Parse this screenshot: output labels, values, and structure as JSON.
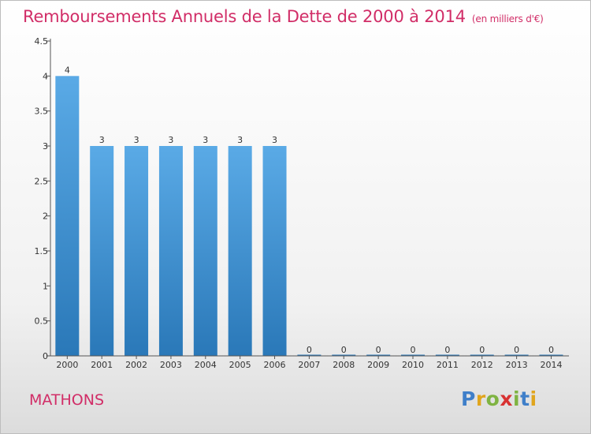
{
  "header": {
    "title": "Remboursements Annuels de la Dette de 2000 à 2014",
    "subtitle": "(en milliers d'€)"
  },
  "footer": {
    "place": "MATHONS",
    "logo_letters": [
      {
        "ch": "P",
        "color": "#3f7fc9"
      },
      {
        "ch": "r",
        "color": "#e0a51d"
      },
      {
        "ch": "o",
        "color": "#7fb342"
      },
      {
        "ch": "x",
        "color": "#d83232"
      },
      {
        "ch": "i",
        "color": "#7fb342"
      },
      {
        "ch": "t",
        "color": "#3f7fc9"
      },
      {
        "ch": "i",
        "color": "#e0a51d"
      }
    ]
  },
  "chart_data": {
    "type": "bar",
    "categories": [
      "2000",
      "2001",
      "2002",
      "2003",
      "2004",
      "2005",
      "2006",
      "2007",
      "2008",
      "2009",
      "2010",
      "2011",
      "2012",
      "2013",
      "2014"
    ],
    "values": [
      4,
      3,
      3,
      3,
      3,
      3,
      3,
      0,
      0,
      0,
      0,
      0,
      0,
      0,
      0
    ],
    "value_labels": [
      "4",
      "3",
      "3",
      "3",
      "3",
      "3",
      "3",
      "0",
      "0",
      "0",
      "0",
      "0",
      "0",
      "0",
      "0"
    ],
    "yticks": [
      {
        "value": 0,
        "label": "0"
      },
      {
        "value": 0.5,
        "label": "0.5"
      },
      {
        "value": 1,
        "label": "1"
      },
      {
        "value": 1.5,
        "label": "1.5"
      },
      {
        "value": 2,
        "label": "2"
      },
      {
        "value": 2.5,
        "label": "2.5"
      },
      {
        "value": 3,
        "label": "3"
      },
      {
        "value": 3.5,
        "label": "3.5"
      },
      {
        "value": 4,
        "label": "4"
      },
      {
        "value": 4.5,
        "label": "4.5"
      }
    ],
    "ylim": [
      0,
      4.5
    ],
    "grid": false,
    "bar_color_top": "#5aaae6",
    "bar_color_bottom": "#2a78b8",
    "accent_color": "#d12d67"
  }
}
